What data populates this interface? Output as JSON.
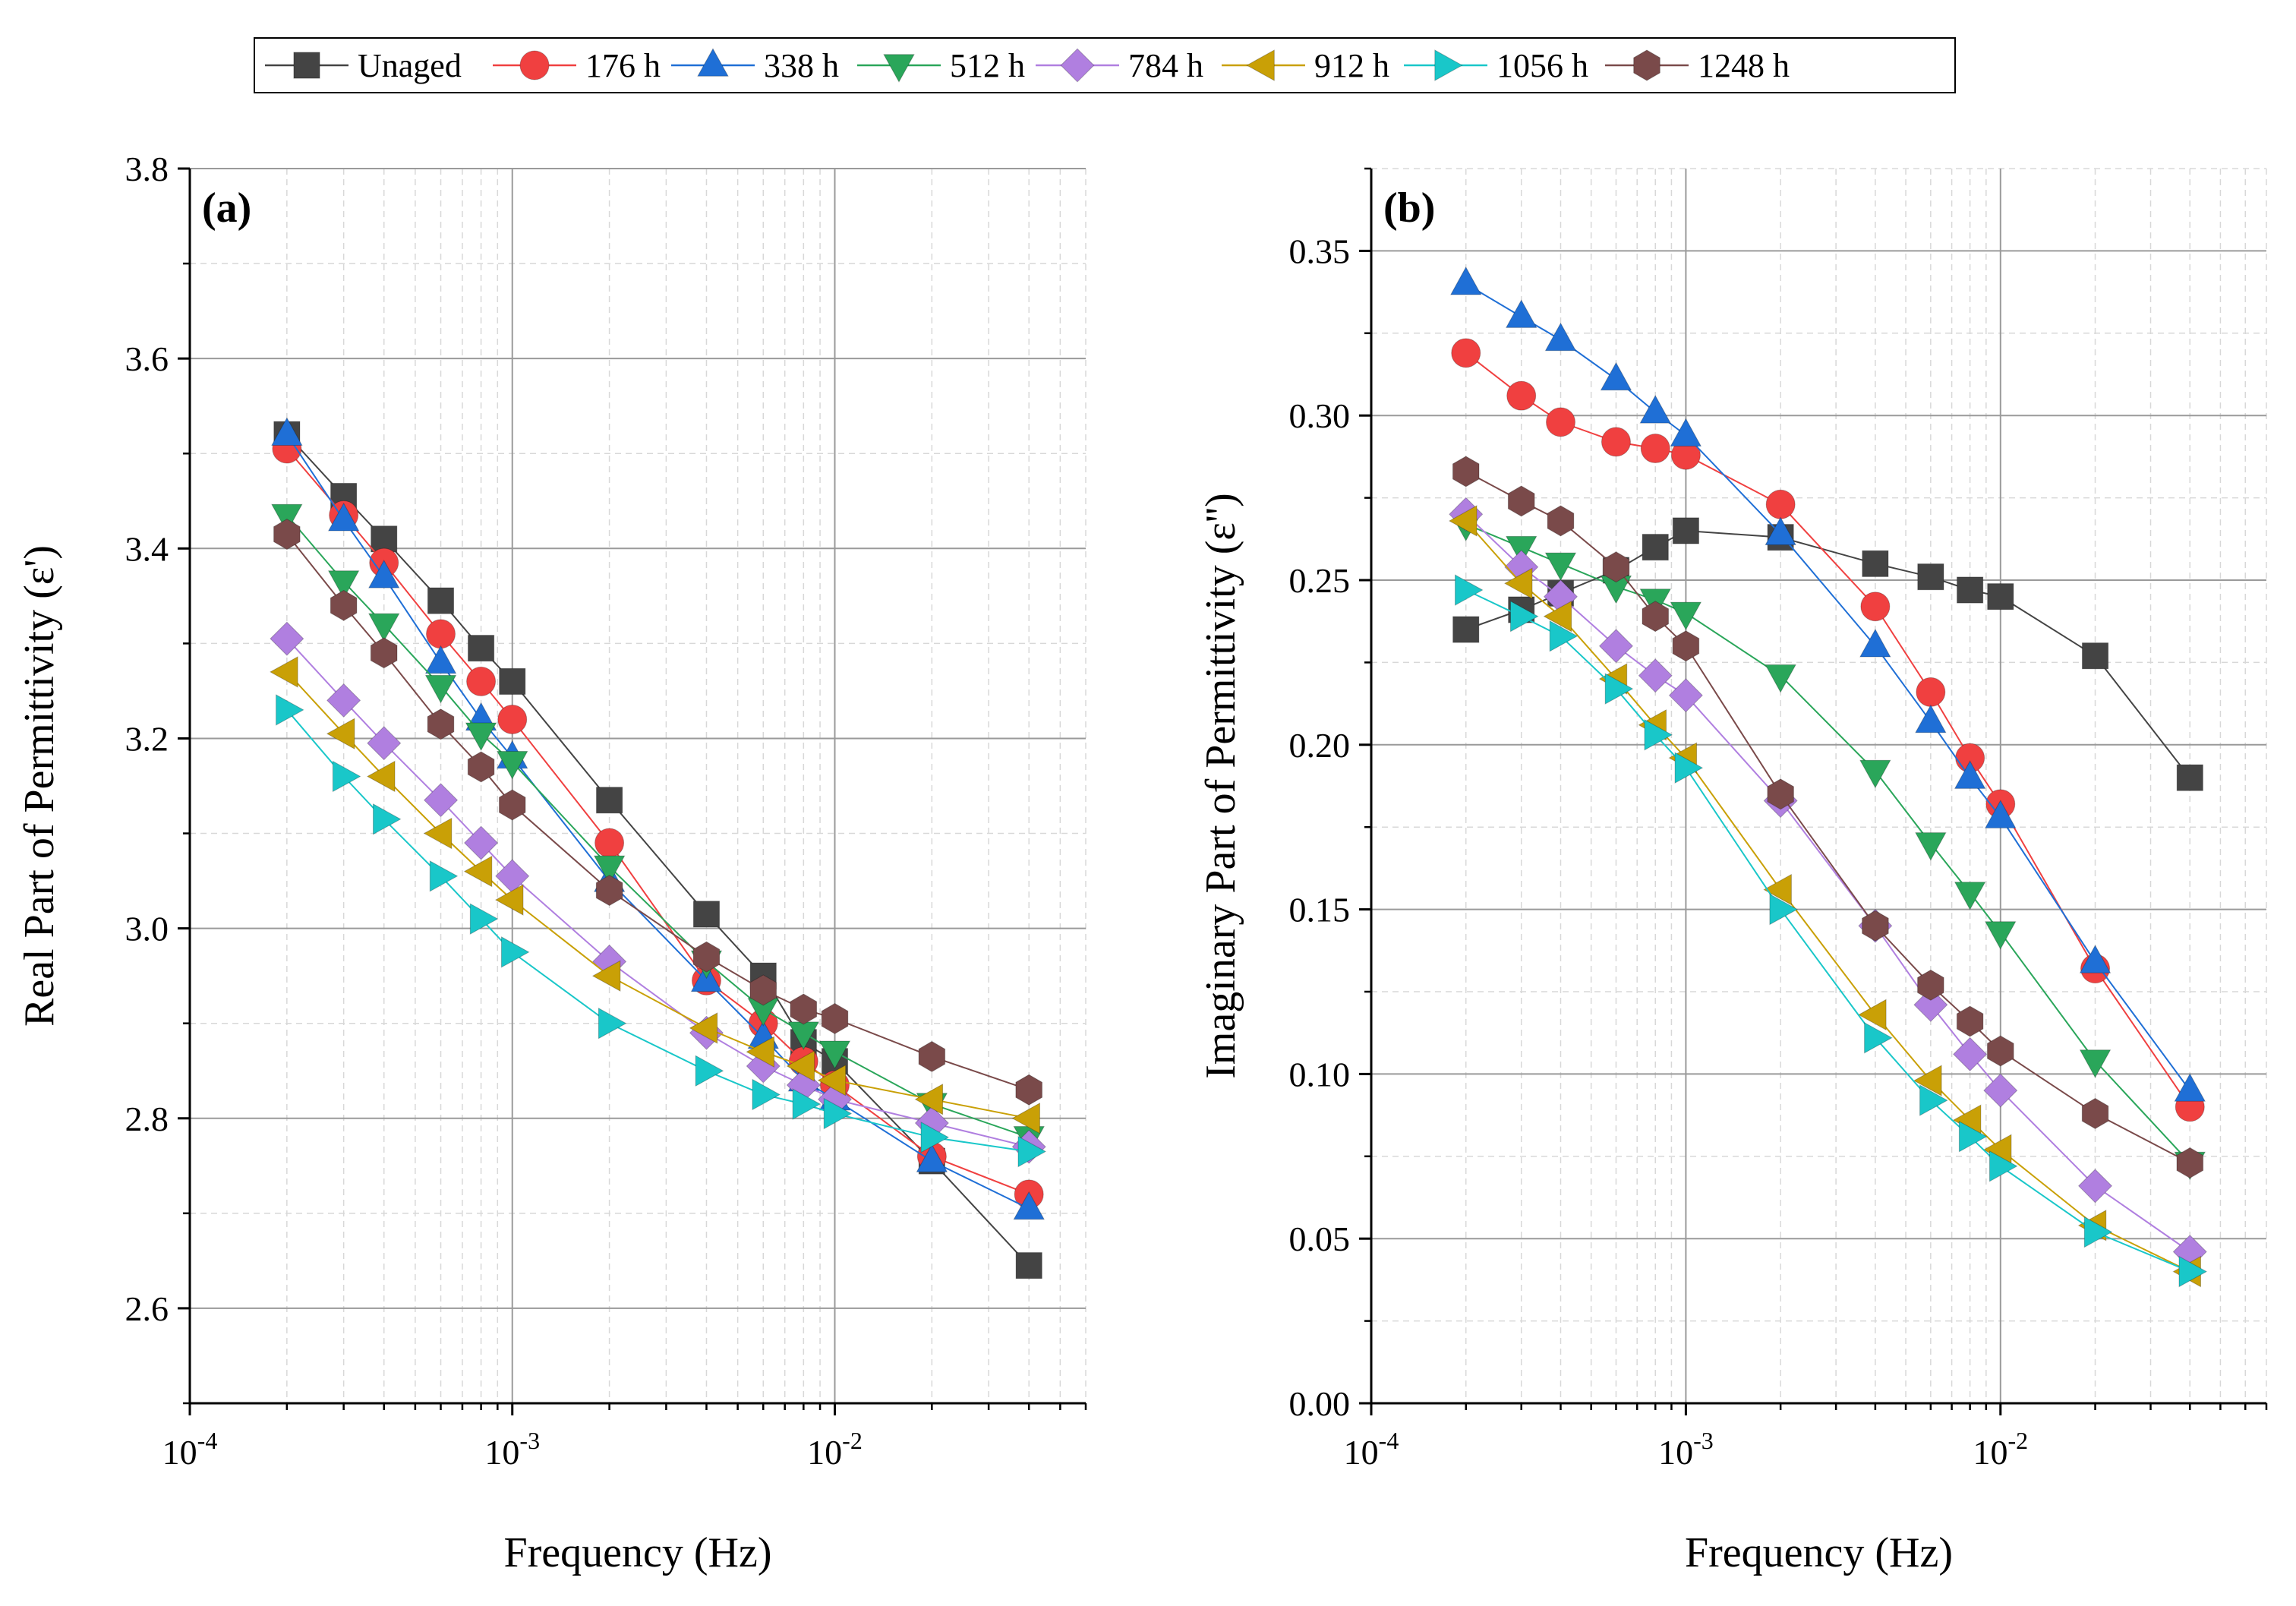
{
  "legend": [
    "Unaged",
    "176 h",
    "338 h",
    "512 h",
    "784 h",
    "912 h",
    "1056 h",
    "1248 h"
  ],
  "series_style": [
    {
      "name": "Unaged",
      "color": "#444444",
      "marker": "square"
    },
    {
      "name": "176 h",
      "color": "#f04040",
      "marker": "circle"
    },
    {
      "name": "338 h",
      "color": "#1f6fd6",
      "marker": "triangle-up"
    },
    {
      "name": "512 h",
      "color": "#2aa65a",
      "marker": "triangle-down"
    },
    {
      "name": "784 h",
      "color": "#b07fe0",
      "marker": "diamond"
    },
    {
      "name": "912 h",
      "color": "#c9a006",
      "marker": "triangle-left"
    },
    {
      "name": "1056 h",
      "color": "#19c7c9",
      "marker": "triangle-right"
    },
    {
      "name": "1248 h",
      "color": "#7a4a4a",
      "marker": "hexagon"
    }
  ],
  "chart_data": [
    {
      "type": "line",
      "panel_label": "(a)",
      "xlabel": "Frequency (Hz)",
      "ylabel": "Real Part of Permittivity (ε')",
      "xscale": "log",
      "xlim": [
        0.0001,
        0.06
      ],
      "ylim": [
        2.5,
        3.8
      ],
      "yticks": [
        2.6,
        2.8,
        3.0,
        3.2,
        3.4,
        3.6,
        3.8
      ],
      "ytick_labels": [
        "2.6",
        "2.8",
        "3.0",
        "3.2",
        "3.4",
        "3.6",
        "3.8"
      ],
      "xtick_labels": [
        {
          "base": "10",
          "exp": "-4"
        },
        {
          "base": "10",
          "exp": "-3"
        },
        {
          "base": "10",
          "exp": "-2"
        }
      ],
      "grid": true,
      "x": [
        0.0002,
        0.0003,
        0.0004,
        0.0006,
        0.0008,
        0.001,
        0.002,
        0.004,
        0.006,
        0.008,
        0.01,
        0.02,
        0.04
      ],
      "series": [
        {
          "name": "Unaged",
          "values": [
            3.52,
            3.455,
            3.41,
            3.345,
            3.295,
            3.26,
            3.135,
            3.015,
            2.95,
            2.88,
            2.86,
            2.755,
            2.645
          ]
        },
        {
          "name": "176 h",
          "values": [
            3.505,
            3.435,
            3.385,
            3.31,
            3.26,
            3.22,
            3.09,
            2.945,
            2.9,
            2.86,
            2.835,
            2.76,
            2.72
          ]
        },
        {
          "name": "338 h",
          "values": [
            3.52,
            3.43,
            3.37,
            3.28,
            3.22,
            3.18,
            3.05,
            2.945,
            2.885,
            2.84,
            2.82,
            2.755,
            2.705
          ]
        },
        {
          "name": "512 h",
          "values": [
            3.435,
            3.365,
            3.32,
            3.255,
            3.205,
            3.175,
            3.065,
            2.965,
            2.915,
            2.89,
            2.87,
            2.815,
            2.78
          ]
        },
        {
          "name": "784 h",
          "values": [
            3.305,
            3.24,
            3.195,
            3.135,
            3.09,
            3.055,
            2.965,
            2.89,
            2.855,
            2.835,
            2.82,
            2.795,
            2.77
          ]
        },
        {
          "name": "912 h",
          "values": [
            3.27,
            3.205,
            3.16,
            3.1,
            3.06,
            3.03,
            2.95,
            2.895,
            2.87,
            2.855,
            2.84,
            2.82,
            2.8
          ]
        },
        {
          "name": "1056 h",
          "values": [
            3.23,
            3.16,
            3.115,
            3.055,
            3.01,
            2.975,
            2.9,
            2.85,
            2.825,
            2.815,
            2.805,
            2.78,
            2.765
          ]
        },
        {
          "name": "1248 h",
          "values": [
            3.415,
            3.34,
            3.29,
            3.215,
            3.17,
            3.13,
            3.04,
            2.97,
            2.935,
            2.915,
            2.905,
            2.865,
            2.83
          ]
        }
      ]
    },
    {
      "type": "line",
      "panel_label": "(b)",
      "xlabel": "Frequency (Hz)",
      "ylabel": "Imaginary Part of Permittivity (ε'')",
      "xscale": "log",
      "xlim": [
        0.0001,
        0.07
      ],
      "ylim": [
        0.0,
        0.375
      ],
      "yticks": [
        0.0,
        0.05,
        0.1,
        0.15,
        0.2,
        0.25,
        0.3,
        0.35
      ],
      "ytick_labels": [
        "0.00",
        "0.05",
        "0.10",
        "0.15",
        "0.20",
        "0.25",
        "0.30",
        "0.35"
      ],
      "xtick_labels": [
        {
          "base": "10",
          "exp": "-4"
        },
        {
          "base": "10",
          "exp": "-3"
        },
        {
          "base": "10",
          "exp": "-2"
        }
      ],
      "grid": true,
      "x": [
        0.0002,
        0.0003,
        0.0004,
        0.0006,
        0.0008,
        0.001,
        0.002,
        0.004,
        0.006,
        0.008,
        0.01,
        0.02,
        0.04
      ],
      "series": [
        {
          "name": "Unaged",
          "values": [
            0.235,
            0.241,
            0.246,
            0.253,
            0.26,
            0.265,
            0.263,
            0.255,
            0.251,
            0.247,
            0.245,
            0.227,
            0.19
          ]
        },
        {
          "name": "176 h",
          "values": [
            0.319,
            0.306,
            0.298,
            0.292,
            0.29,
            0.288,
            0.273,
            0.242,
            0.216,
            0.196,
            0.182,
            0.132,
            0.09
          ]
        },
        {
          "name": "338 h",
          "values": [
            0.34,
            0.33,
            0.323,
            0.311,
            0.301,
            0.294,
            0.264,
            0.23,
            0.207,
            0.19,
            0.178,
            0.134,
            0.095
          ]
        },
        {
          "name": "512 h",
          "values": [
            0.267,
            0.26,
            0.255,
            0.248,
            0.244,
            0.24,
            0.221,
            0.192,
            0.17,
            0.155,
            0.143,
            0.104,
            0.073
          ]
        },
        {
          "name": "784 h",
          "values": [
            0.27,
            0.254,
            0.245,
            0.23,
            0.221,
            0.215,
            0.183,
            0.145,
            0.121,
            0.106,
            0.095,
            0.066,
            0.046
          ]
        },
        {
          "name": "912 h",
          "values": [
            0.268,
            0.249,
            0.239,
            0.22,
            0.206,
            0.196,
            0.156,
            0.118,
            0.098,
            0.086,
            0.077,
            0.054,
            0.04
          ]
        },
        {
          "name": "1056 h",
          "values": [
            0.247,
            0.239,
            0.233,
            0.217,
            0.203,
            0.193,
            0.15,
            0.111,
            0.092,
            0.081,
            0.072,
            0.052,
            0.04
          ]
        },
        {
          "name": "1248 h",
          "values": [
            0.283,
            0.274,
            0.268,
            0.254,
            0.239,
            0.23,
            0.185,
            0.145,
            0.127,
            0.116,
            0.107,
            0.088,
            0.073
          ]
        }
      ]
    }
  ]
}
